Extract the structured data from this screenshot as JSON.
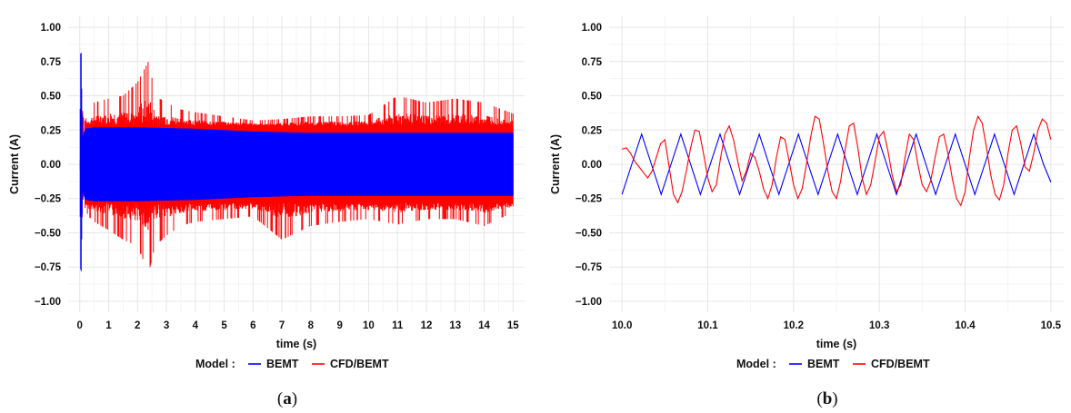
{
  "chart_data": [
    {
      "type": "line",
      "caption_open": "(",
      "caption_letter": "a",
      "caption_close": ")",
      "xlabel": "time (s)",
      "ylabel": "Current (A)",
      "xlim": [
        -0.4,
        15.4
      ],
      "ylim": [
        -1.08,
        1.08
      ],
      "xticks": [
        0,
        1,
        2,
        3,
        4,
        5,
        6,
        7,
        8,
        9,
        10,
        11,
        12,
        13,
        14,
        15
      ],
      "xtick_labels": [
        "0",
        "1",
        "2",
        "3",
        "4",
        "5",
        "6",
        "7",
        "8",
        "9",
        "10",
        "11",
        "12",
        "13",
        "14",
        "15"
      ],
      "yticks": [
        -1.0,
        -0.75,
        -0.5,
        -0.25,
        0.0,
        0.25,
        0.5,
        0.75,
        1.0
      ],
      "ytick_labels": [
        "−1.00",
        "−0.75",
        "−0.50",
        "−0.25",
        "0.00",
        "0.25",
        "0.50",
        "0.75",
        "1.00"
      ],
      "grid": true,
      "legend": {
        "title": "Model :",
        "position": "bottom"
      },
      "series": [
        {
          "name": "CFD/BEMT",
          "color": "#ff0000",
          "x": [
            0.0,
            0.1,
            0.12,
            0.15,
            0.3,
            0.5,
            1.0,
            1.5,
            2.0,
            2.2,
            2.4,
            2.6,
            3.0,
            3.5,
            4.0,
            5.0,
            6.0,
            7.0,
            8.0,
            9.0,
            10.0,
            11.0,
            12.0,
            13.0,
            14.0,
            15.0
          ],
          "upper": [
            0.0,
            0.83,
            0.83,
            0.3,
            0.38,
            0.45,
            0.48,
            0.5,
            0.6,
            0.68,
            0.76,
            0.5,
            0.45,
            0.4,
            0.38,
            0.35,
            0.32,
            0.33,
            0.35,
            0.35,
            0.36,
            0.5,
            0.45,
            0.48,
            0.45,
            0.37
          ],
          "lower": [
            0.0,
            -0.9,
            -0.9,
            -0.3,
            -0.38,
            -0.42,
            -0.48,
            -0.55,
            -0.6,
            -0.7,
            -0.78,
            -0.6,
            -0.52,
            -0.45,
            -0.42,
            -0.4,
            -0.38,
            -0.55,
            -0.45,
            -0.42,
            -0.4,
            -0.44,
            -0.4,
            -0.4,
            -0.45,
            -0.35
          ]
        },
        {
          "name": "BEMT",
          "color": "#0000ff",
          "x": [
            0.0,
            0.04,
            0.07,
            0.1,
            0.2,
            0.5,
            1.0,
            2.0,
            4.0,
            6.0,
            8.0,
            10.0,
            12.0,
            14.0,
            15.0
          ],
          "upper": [
            0.0,
            0.97,
            0.5,
            0.2,
            0.26,
            0.27,
            0.27,
            0.27,
            0.26,
            0.24,
            0.23,
            0.23,
            0.23,
            0.23,
            0.23
          ],
          "lower": [
            0.0,
            -0.92,
            -0.5,
            -0.2,
            -0.26,
            -0.27,
            -0.27,
            -0.27,
            -0.26,
            -0.24,
            -0.23,
            -0.23,
            -0.23,
            -0.23,
            -0.23
          ]
        }
      ]
    },
    {
      "type": "line",
      "caption_open": "(",
      "caption_letter": "b",
      "caption_close": ")",
      "xlabel": "time (s)",
      "ylabel": "Current (A)",
      "xlim": [
        9.985,
        10.515
      ],
      "ylim": [
        -1.08,
        1.08
      ],
      "xticks": [
        10.0,
        10.1,
        10.2,
        10.3,
        10.4,
        10.5
      ],
      "xtick_labels": [
        "10.0",
        "10.1",
        "10.2",
        "10.3",
        "10.4",
        "10.5"
      ],
      "yticks": [
        -1.0,
        -0.75,
        -0.5,
        -0.25,
        0.0,
        0.25,
        0.5,
        0.75,
        1.0
      ],
      "ytick_labels": [
        "−1.00",
        "−0.75",
        "−0.50",
        "−0.25",
        "0.00",
        "0.25",
        "0.50",
        "0.75",
        "1.00"
      ],
      "grid": true,
      "legend": {
        "title": "Model :",
        "position": "bottom"
      },
      "series": [
        {
          "name": "BEMT",
          "color": "#0000ff",
          "x": [
            10.0,
            10.0114,
            10.0229,
            10.0343,
            10.0457,
            10.0571,
            10.0686,
            10.08,
            10.0914,
            10.1029,
            10.1143,
            10.1257,
            10.1371,
            10.1486,
            10.16,
            10.1714,
            10.1829,
            10.1943,
            10.2057,
            10.2171,
            10.2286,
            10.24,
            10.2514,
            10.2629,
            10.2743,
            10.2857,
            10.2971,
            10.3086,
            10.32,
            10.3314,
            10.3429,
            10.3543,
            10.3657,
            10.3771,
            10.3886,
            10.4,
            10.4114,
            10.4229,
            10.4343,
            10.4457,
            10.4571,
            10.4686,
            10.48,
            10.4914,
            10.5
          ],
          "y": [
            -0.22,
            0.0,
            0.22,
            0.0,
            -0.22,
            0.0,
            0.22,
            0.0,
            -0.22,
            0.0,
            0.22,
            0.0,
            -0.22,
            0.0,
            0.22,
            0.0,
            -0.22,
            0.0,
            0.22,
            0.0,
            -0.22,
            0.0,
            0.22,
            0.0,
            -0.22,
            0.0,
            0.22,
            0.0,
            -0.22,
            0.0,
            0.22,
            0.0,
            -0.22,
            0.0,
            0.22,
            0.0,
            -0.22,
            0.0,
            0.22,
            0.0,
            -0.22,
            0.0,
            0.22,
            0.0,
            -0.13
          ]
        },
        {
          "name": "CFD/BEMT",
          "color": "#ff0000",
          "x": [
            10.0,
            10.005,
            10.01,
            10.015,
            10.02,
            10.025,
            10.03,
            10.035,
            10.04,
            10.045,
            10.05,
            10.055,
            10.06,
            10.065,
            10.07,
            10.075,
            10.08,
            10.085,
            10.09,
            10.095,
            10.1,
            10.105,
            10.11,
            10.115,
            10.12,
            10.125,
            10.13,
            10.135,
            10.14,
            10.145,
            10.15,
            10.155,
            10.16,
            10.165,
            10.17,
            10.175,
            10.18,
            10.185,
            10.19,
            10.195,
            10.2,
            10.205,
            10.21,
            10.215,
            10.22,
            10.225,
            10.23,
            10.235,
            10.24,
            10.245,
            10.25,
            10.255,
            10.26,
            10.265,
            10.27,
            10.275,
            10.28,
            10.285,
            10.29,
            10.295,
            10.3,
            10.305,
            10.31,
            10.315,
            10.32,
            10.325,
            10.33,
            10.335,
            10.34,
            10.345,
            10.35,
            10.355,
            10.36,
            10.365,
            10.37,
            10.375,
            10.38,
            10.385,
            10.39,
            10.395,
            10.4,
            10.405,
            10.41,
            10.415,
            10.42,
            10.425,
            10.43,
            10.435,
            10.44,
            10.445,
            10.45,
            10.455,
            10.46,
            10.465,
            10.47,
            10.475,
            10.48,
            10.485,
            10.49,
            10.495,
            10.5
          ],
          "y": [
            0.11,
            0.12,
            0.08,
            0.02,
            -0.02,
            -0.06,
            -0.1,
            -0.05,
            0.05,
            0.15,
            0.18,
            -0.02,
            -0.22,
            -0.28,
            -0.2,
            -0.05,
            0.12,
            0.25,
            0.24,
            0.08,
            -0.1,
            -0.2,
            -0.15,
            0.05,
            0.22,
            0.28,
            0.18,
            0.02,
            -0.12,
            -0.05,
            0.08,
            0.05,
            -0.05,
            -0.18,
            -0.25,
            -0.15,
            0.05,
            0.2,
            0.18,
            0.02,
            -0.15,
            -0.25,
            -0.18,
            0.0,
            0.2,
            0.35,
            0.33,
            0.15,
            -0.05,
            -0.2,
            -0.25,
            -0.12,
            0.1,
            0.28,
            0.3,
            0.12,
            -0.1,
            -0.22,
            -0.15,
            0.02,
            0.2,
            0.24,
            0.1,
            -0.08,
            -0.2,
            -0.15,
            0.05,
            0.22,
            0.18,
            0.0,
            -0.15,
            -0.2,
            -0.12,
            0.05,
            0.2,
            0.22,
            0.08,
            -0.1,
            -0.25,
            -0.3,
            -0.2,
            0.05,
            0.25,
            0.35,
            0.3,
            0.12,
            -0.08,
            -0.22,
            -0.26,
            -0.15,
            0.08,
            0.25,
            0.28,
            0.15,
            -0.02,
            -0.05,
            0.08,
            0.25,
            0.33,
            0.3,
            0.18
          ]
        }
      ]
    }
  ]
}
